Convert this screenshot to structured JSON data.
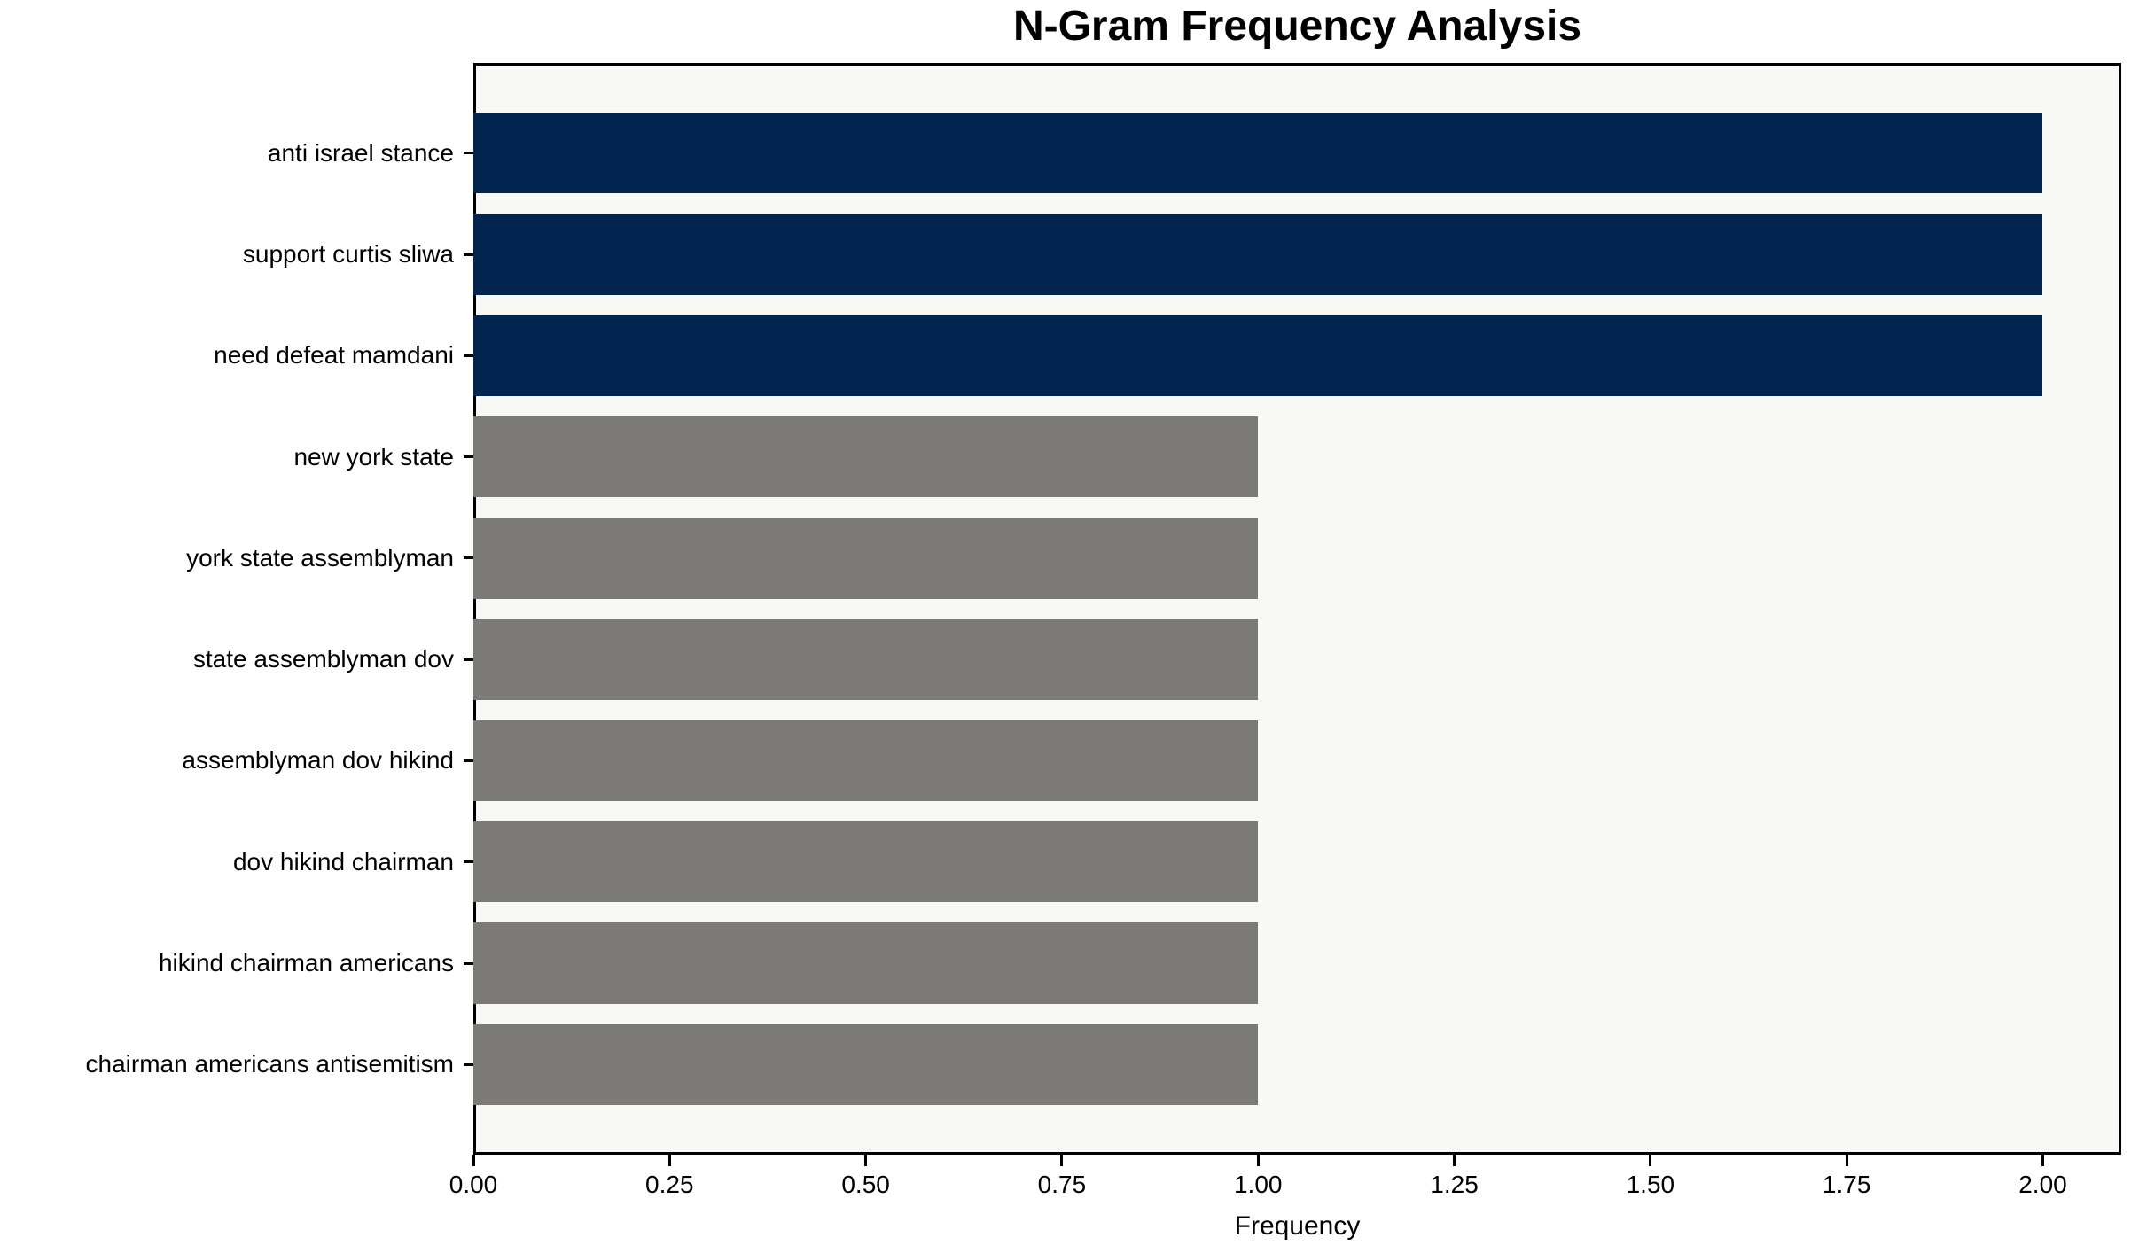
{
  "chart_data": {
    "type": "bar",
    "orientation": "horizontal",
    "title": "N-Gram Frequency Analysis",
    "xlabel": "Frequency",
    "ylabel": "",
    "categories": [
      "anti israel stance",
      "support curtis sliwa",
      "need defeat mamdani",
      "new york state",
      "york state assemblyman",
      "state assemblyman dov",
      "assemblyman dov hikind",
      "dov hikind chairman",
      "hikind chairman americans",
      "chairman americans antisemitism"
    ],
    "values": [
      2,
      2,
      2,
      1,
      1,
      1,
      1,
      1,
      1,
      1
    ],
    "bar_colors": [
      "#02254f",
      "#02254f",
      "#02254f",
      "#7b7a76",
      "#7b7a76",
      "#7b7a76",
      "#7b7a76",
      "#7b7a76",
      "#7b7a76",
      "#7b7a76"
    ],
    "x_tick_values": [
      0,
      0.25,
      0.5,
      0.75,
      1.0,
      1.25,
      1.5,
      1.75,
      2.0
    ],
    "x_tick_labels": [
      "0.00",
      "0.25",
      "0.50",
      "0.75",
      "1.00",
      "1.25",
      "1.50",
      "1.75",
      "2.00"
    ],
    "xlim": [
      0,
      2.1
    ],
    "grid": false,
    "legend": null,
    "bar_fraction": 0.8,
    "colors": {
      "high_freq_bar": "#02254f",
      "low_freq_bar": "#7b7a76",
      "plot_background": "#f8f8f7",
      "figure_background": "#ffffff",
      "axis": "#000000",
      "text": "#000000"
    }
  }
}
